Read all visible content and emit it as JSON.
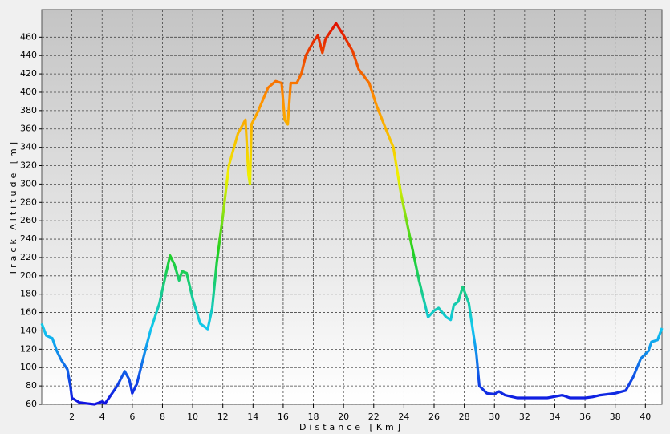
{
  "chart_data": {
    "type": "line",
    "xlabel": "Distance [Km]",
    "ylabel": "Track Altitude [m]",
    "x": [
      0,
      0.3,
      0.7,
      1.0,
      1.3,
      1.7,
      1.9,
      2.0,
      2.5,
      3,
      3.5,
      4.0,
      4.2,
      4.5,
      5,
      5.5,
      5.8,
      6.0,
      6.3,
      6.8,
      7.2,
      7.8,
      8.2,
      8.5,
      8.8,
      9.1,
      9.3,
      9.6,
      10.0,
      10.5,
      11.0,
      11.3,
      11.6,
      12.0,
      12.4,
      13.0,
      13.5,
      13.7,
      13.8,
      13.9,
      14.3,
      15.0,
      15.5,
      15.9,
      16.1,
      16.3,
      16.5,
      16.9,
      17.2,
      17.5,
      18.0,
      18.3,
      18.6,
      18.8,
      19.3,
      19.5,
      20.0,
      20.6,
      21.0,
      21.7,
      22.2,
      22.8,
      23.3,
      23.8,
      24.3,
      25.0,
      25.6,
      26.0,
      26.3,
      26.8,
      27.1,
      27.3,
      27.6,
      27.9,
      28.3,
      28.8,
      29.0,
      29.5,
      30.0,
      30.3,
      30.7,
      31.5,
      32.5,
      33.5,
      34.5,
      35.0,
      36.0,
      36.5,
      37.0,
      38.0,
      38.7,
      39.2,
      39.7,
      40.2,
      40.4,
      40.8,
      41.1
    ],
    "values": [
      148,
      135,
      132,
      118,
      108,
      98,
      80,
      67,
      62,
      61,
      60,
      63,
      61,
      68,
      80,
      96,
      87,
      72,
      82,
      115,
      140,
      170,
      200,
      222,
      212,
      195,
      205,
      203,
      175,
      148,
      142,
      165,
      215,
      265,
      320,
      355,
      370,
      310,
      300,
      365,
      378,
      405,
      412,
      410,
      370,
      365,
      410,
      410,
      420,
      440,
      455,
      462,
      443,
      458,
      470,
      475,
      462,
      445,
      425,
      410,
      385,
      360,
      340,
      290,
      250,
      195,
      155,
      162,
      165,
      155,
      152,
      168,
      172,
      188,
      170,
      115,
      80,
      72,
      71,
      74,
      70,
      67,
      67,
      67,
      70,
      67,
      67,
      68,
      70,
      72,
      75,
      90,
      110,
      118,
      128,
      130,
      143
    ],
    "colors": [
      "#1010e0",
      "#10c8f0",
      "#20d020",
      "#f0f000",
      "#ff9000",
      "#e01000"
    ],
    "xlim": [
      0,
      41.1
    ],
    "xticks": [
      2,
      4,
      6,
      8,
      10,
      12,
      14,
      16,
      18,
      20,
      22,
      24,
      26,
      28,
      30,
      32,
      34,
      36,
      38,
      40
    ],
    "ylim": [
      60,
      490
    ],
    "yticks": [
      60,
      80,
      100,
      120,
      140,
      160,
      180,
      200,
      220,
      240,
      260,
      280,
      300,
      320,
      340,
      360,
      380,
      400,
      420,
      440,
      460
    ],
    "grid": true
  }
}
